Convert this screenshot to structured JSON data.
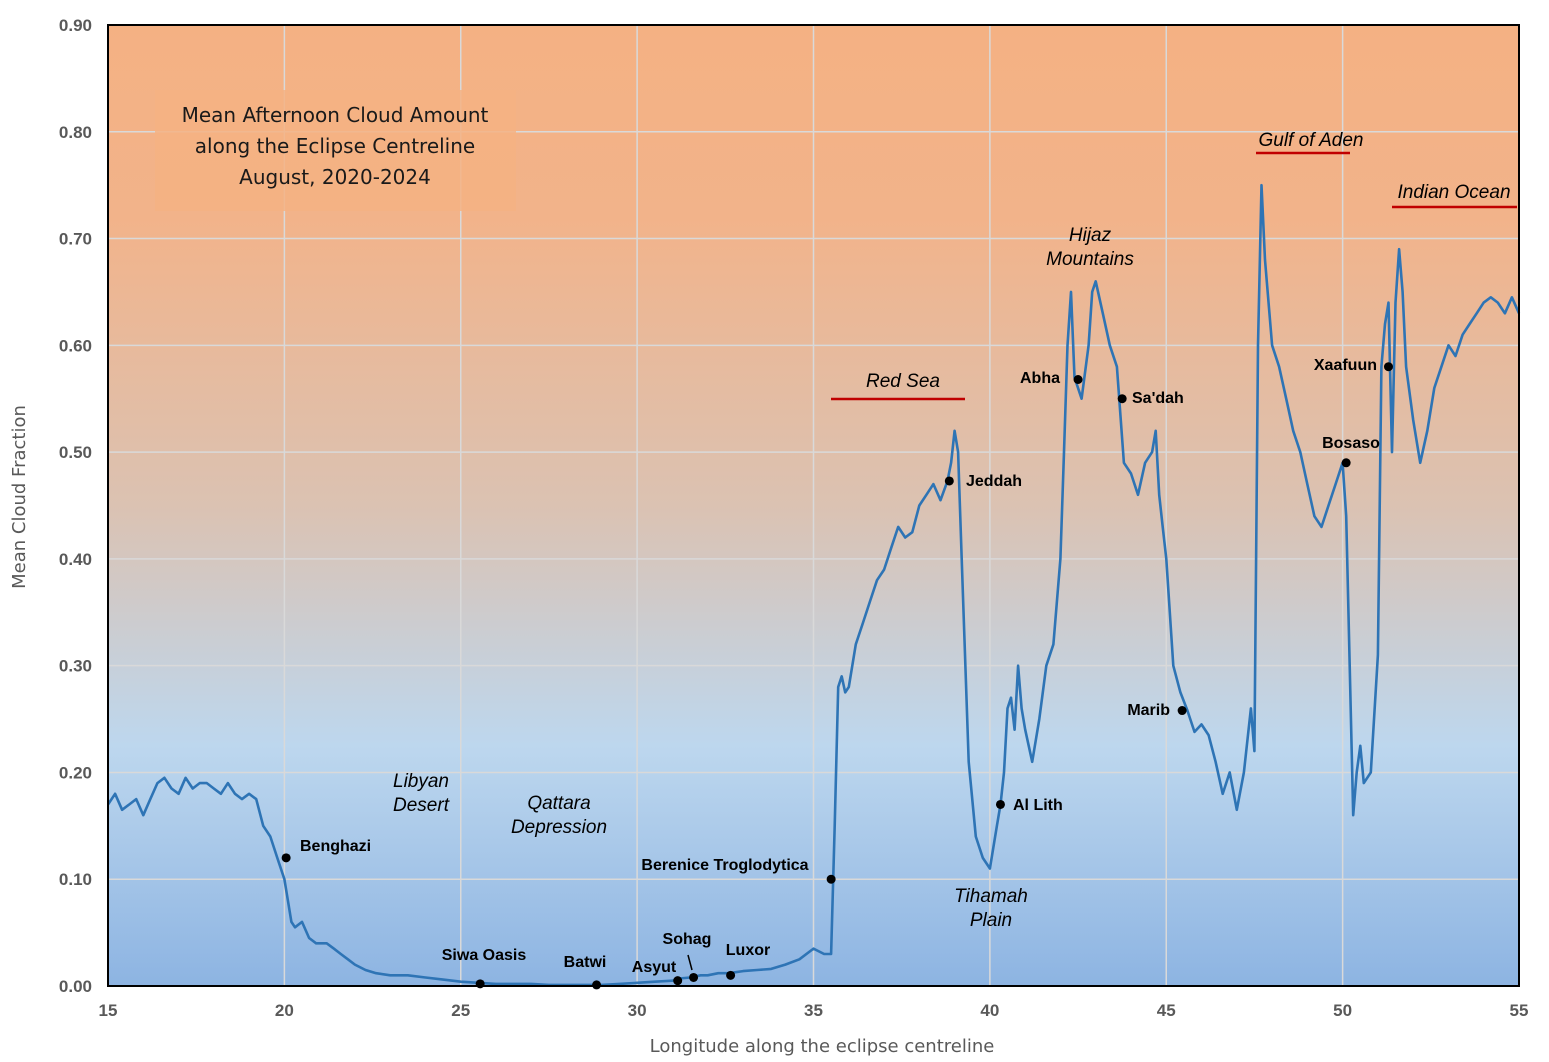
{
  "chart_data": {
    "type": "line",
    "title": [
      "Mean Afternoon Cloud Amount",
      "along the Eclipse Centreline",
      "August, 2020-2024"
    ],
    "xlabel": "Longitude along the eclipse centreline",
    "ylabel": "Mean Cloud Fraction",
    "xlim": [
      15,
      55
    ],
    "ylim": [
      0,
      0.9
    ],
    "xticks": [
      "15",
      "20",
      "25",
      "30",
      "35",
      "40",
      "45",
      "50",
      "55"
    ],
    "yticks": [
      "0.00",
      "0.10",
      "0.20",
      "0.30",
      "0.40",
      "0.50",
      "0.60",
      "0.70",
      "0.80",
      "0.90"
    ],
    "grid": true,
    "colors": {
      "line": "#2e74b5",
      "marker": "#000000",
      "sea_bar": "#c00000",
      "bg_top": "#f4b183",
      "bg_mid": "#bdd7ee",
      "bg_bottom": "#8db4e2"
    },
    "series": [
      {
        "x": [
          15.0,
          15.2,
          15.4,
          15.6,
          15.8,
          16.0,
          16.2,
          16.4,
          16.6,
          16.8,
          17.0,
          17.2,
          17.4,
          17.6,
          17.8,
          18.0,
          18.2,
          18.4,
          18.6,
          18.8,
          19.0,
          19.2,
          19.4,
          19.6,
          19.8,
          20.0,
          20.1,
          20.2,
          20.3,
          20.5,
          20.7,
          20.9,
          21.0,
          21.2,
          21.4,
          21.6,
          21.8,
          22.0,
          22.3,
          22.6,
          23.0,
          23.5,
          24.0,
          24.5,
          25.0,
          25.5,
          26.0,
          26.5,
          27.0,
          27.5,
          28.0,
          28.5,
          29.0,
          29.5,
          30.0,
          30.5,
          31.0,
          31.2,
          31.5,
          31.8,
          32.0,
          32.3,
          32.6,
          33.0,
          33.4,
          33.8,
          34.2,
          34.6,
          35.0,
          35.3,
          35.5,
          35.6,
          35.7,
          35.8,
          35.9,
          36.0,
          36.2,
          36.4,
          36.6,
          36.8,
          37.0,
          37.2,
          37.4,
          37.6,
          37.8,
          38.0,
          38.2,
          38.4,
          38.6,
          38.8,
          38.9,
          39.0,
          39.1,
          39.2,
          39.4,
          39.6,
          39.8,
          40.0,
          40.1,
          40.2,
          40.3,
          40.4,
          40.5,
          40.6,
          40.7,
          40.8,
          40.9,
          41.0,
          41.2,
          41.4,
          41.6,
          41.8,
          42.0,
          42.1,
          42.2,
          42.3,
          42.4,
          42.6,
          42.8,
          42.9,
          43.0,
          43.2,
          43.4,
          43.6,
          43.8,
          44.0,
          44.2,
          44.4,
          44.6,
          44.7,
          44.8,
          44.9,
          45.0,
          45.1,
          45.2,
          45.4,
          45.6,
          45.8,
          46.0,
          46.2,
          46.4,
          46.6,
          46.8,
          47.0,
          47.2,
          47.4,
          47.5,
          47.6,
          47.7,
          47.8,
          48.0,
          48.2,
          48.4,
          48.6,
          48.8,
          49.0,
          49.2,
          49.4,
          49.6,
          49.8,
          50.0,
          50.1,
          50.2,
          50.3,
          50.4,
          50.5,
          50.6,
          50.8,
          51.0,
          51.1,
          51.2,
          51.3,
          51.4,
          51.5,
          51.6,
          51.7,
          51.8,
          52.0,
          52.2,
          52.4,
          52.6,
          52.8,
          53.0,
          53.2,
          53.4,
          53.6,
          53.8,
          54.0,
          54.2,
          54.4,
          54.6,
          54.8,
          55.0
        ],
        "y": [
          0.17,
          0.18,
          0.165,
          0.17,
          0.175,
          0.16,
          0.175,
          0.19,
          0.195,
          0.185,
          0.18,
          0.195,
          0.185,
          0.19,
          0.19,
          0.185,
          0.18,
          0.19,
          0.18,
          0.175,
          0.18,
          0.175,
          0.15,
          0.14,
          0.12,
          0.1,
          0.08,
          0.06,
          0.055,
          0.06,
          0.045,
          0.04,
          0.04,
          0.04,
          0.035,
          0.03,
          0.025,
          0.02,
          0.015,
          0.012,
          0.01,
          0.01,
          0.008,
          0.006,
          0.004,
          0.003,
          0.002,
          0.002,
          0.002,
          0.001,
          0.001,
          0.001,
          0.001,
          0.002,
          0.003,
          0.004,
          0.005,
          0.007,
          0.008,
          0.01,
          0.01,
          0.012,
          0.012,
          0.014,
          0.015,
          0.016,
          0.02,
          0.025,
          0.035,
          0.03,
          0.03,
          0.15,
          0.28,
          0.29,
          0.275,
          0.28,
          0.32,
          0.34,
          0.36,
          0.38,
          0.39,
          0.41,
          0.43,
          0.42,
          0.425,
          0.45,
          0.46,
          0.47,
          0.455,
          0.473,
          0.49,
          0.52,
          0.5,
          0.4,
          0.21,
          0.14,
          0.12,
          0.11,
          0.13,
          0.15,
          0.17,
          0.2,
          0.26,
          0.27,
          0.24,
          0.3,
          0.26,
          0.24,
          0.21,
          0.25,
          0.3,
          0.32,
          0.4,
          0.5,
          0.6,
          0.65,
          0.57,
          0.55,
          0.6,
          0.65,
          0.66,
          0.63,
          0.6,
          0.58,
          0.49,
          0.48,
          0.46,
          0.49,
          0.5,
          0.52,
          0.46,
          0.43,
          0.4,
          0.35,
          0.3,
          0.275,
          0.258,
          0.238,
          0.245,
          0.235,
          0.21,
          0.18,
          0.2,
          0.165,
          0.2,
          0.26,
          0.22,
          0.6,
          0.75,
          0.68,
          0.6,
          0.58,
          0.55,
          0.52,
          0.5,
          0.47,
          0.44,
          0.43,
          0.45,
          0.47,
          0.49,
          0.44,
          0.3,
          0.16,
          0.2,
          0.225,
          0.19,
          0.2,
          0.31,
          0.58,
          0.62,
          0.64,
          0.5,
          0.64,
          0.69,
          0.65,
          0.58,
          0.53,
          0.49,
          0.52,
          0.56,
          0.58,
          0.6,
          0.59,
          0.61,
          0.62,
          0.63,
          0.64,
          0.645,
          0.64,
          0.63,
          0.645,
          0.63
        ]
      }
    ],
    "places": [
      {
        "label": "Benghazi",
        "x": 20.05,
        "y": 0.12
      },
      {
        "label": "Siwa Oasis",
        "x": 25.55,
        "y": 0.002
      },
      {
        "label": "Batwi",
        "x": 28.85,
        "y": 0.001
      },
      {
        "label": "Asyut",
        "x": 31.15,
        "y": 0.005
      },
      {
        "label": "Sohag",
        "x": 31.6,
        "y": 0.008
      },
      {
        "label": "Luxor",
        "x": 32.65,
        "y": 0.01
      },
      {
        "label": "Berenice Troglodytica",
        "x": 35.5,
        "y": 0.1
      },
      {
        "label": "Jeddah",
        "x": 38.85,
        "y": 0.473
      },
      {
        "label": "Al Lith",
        "x": 40.3,
        "y": 0.17
      },
      {
        "label": "Abha",
        "x": 42.5,
        "y": 0.568
      },
      {
        "label": "Sa'dah",
        "x": 43.75,
        "y": 0.55
      },
      {
        "label": "Marib",
        "x": 45.45,
        "y": 0.258
      },
      {
        "label": "Bosaso",
        "x": 50.1,
        "y": 0.49
      },
      {
        "label": "Xaafuun",
        "x": 51.3,
        "y": 0.58
      }
    ],
    "regions": [
      {
        "lines": [
          "Libyan",
          "Desert"
        ]
      },
      {
        "lines": [
          "Qattara",
          "Depression"
        ]
      },
      {
        "lines": [
          "Red Sea"
        ]
      },
      {
        "lines": [
          "Hijaz",
          "Mountains"
        ]
      },
      {
        "lines": [
          "Tihamah",
          "Plain"
        ]
      },
      {
        "lines": [
          "Gulf of Aden"
        ]
      },
      {
        "lines": [
          "Indian Ocean"
        ]
      }
    ]
  }
}
